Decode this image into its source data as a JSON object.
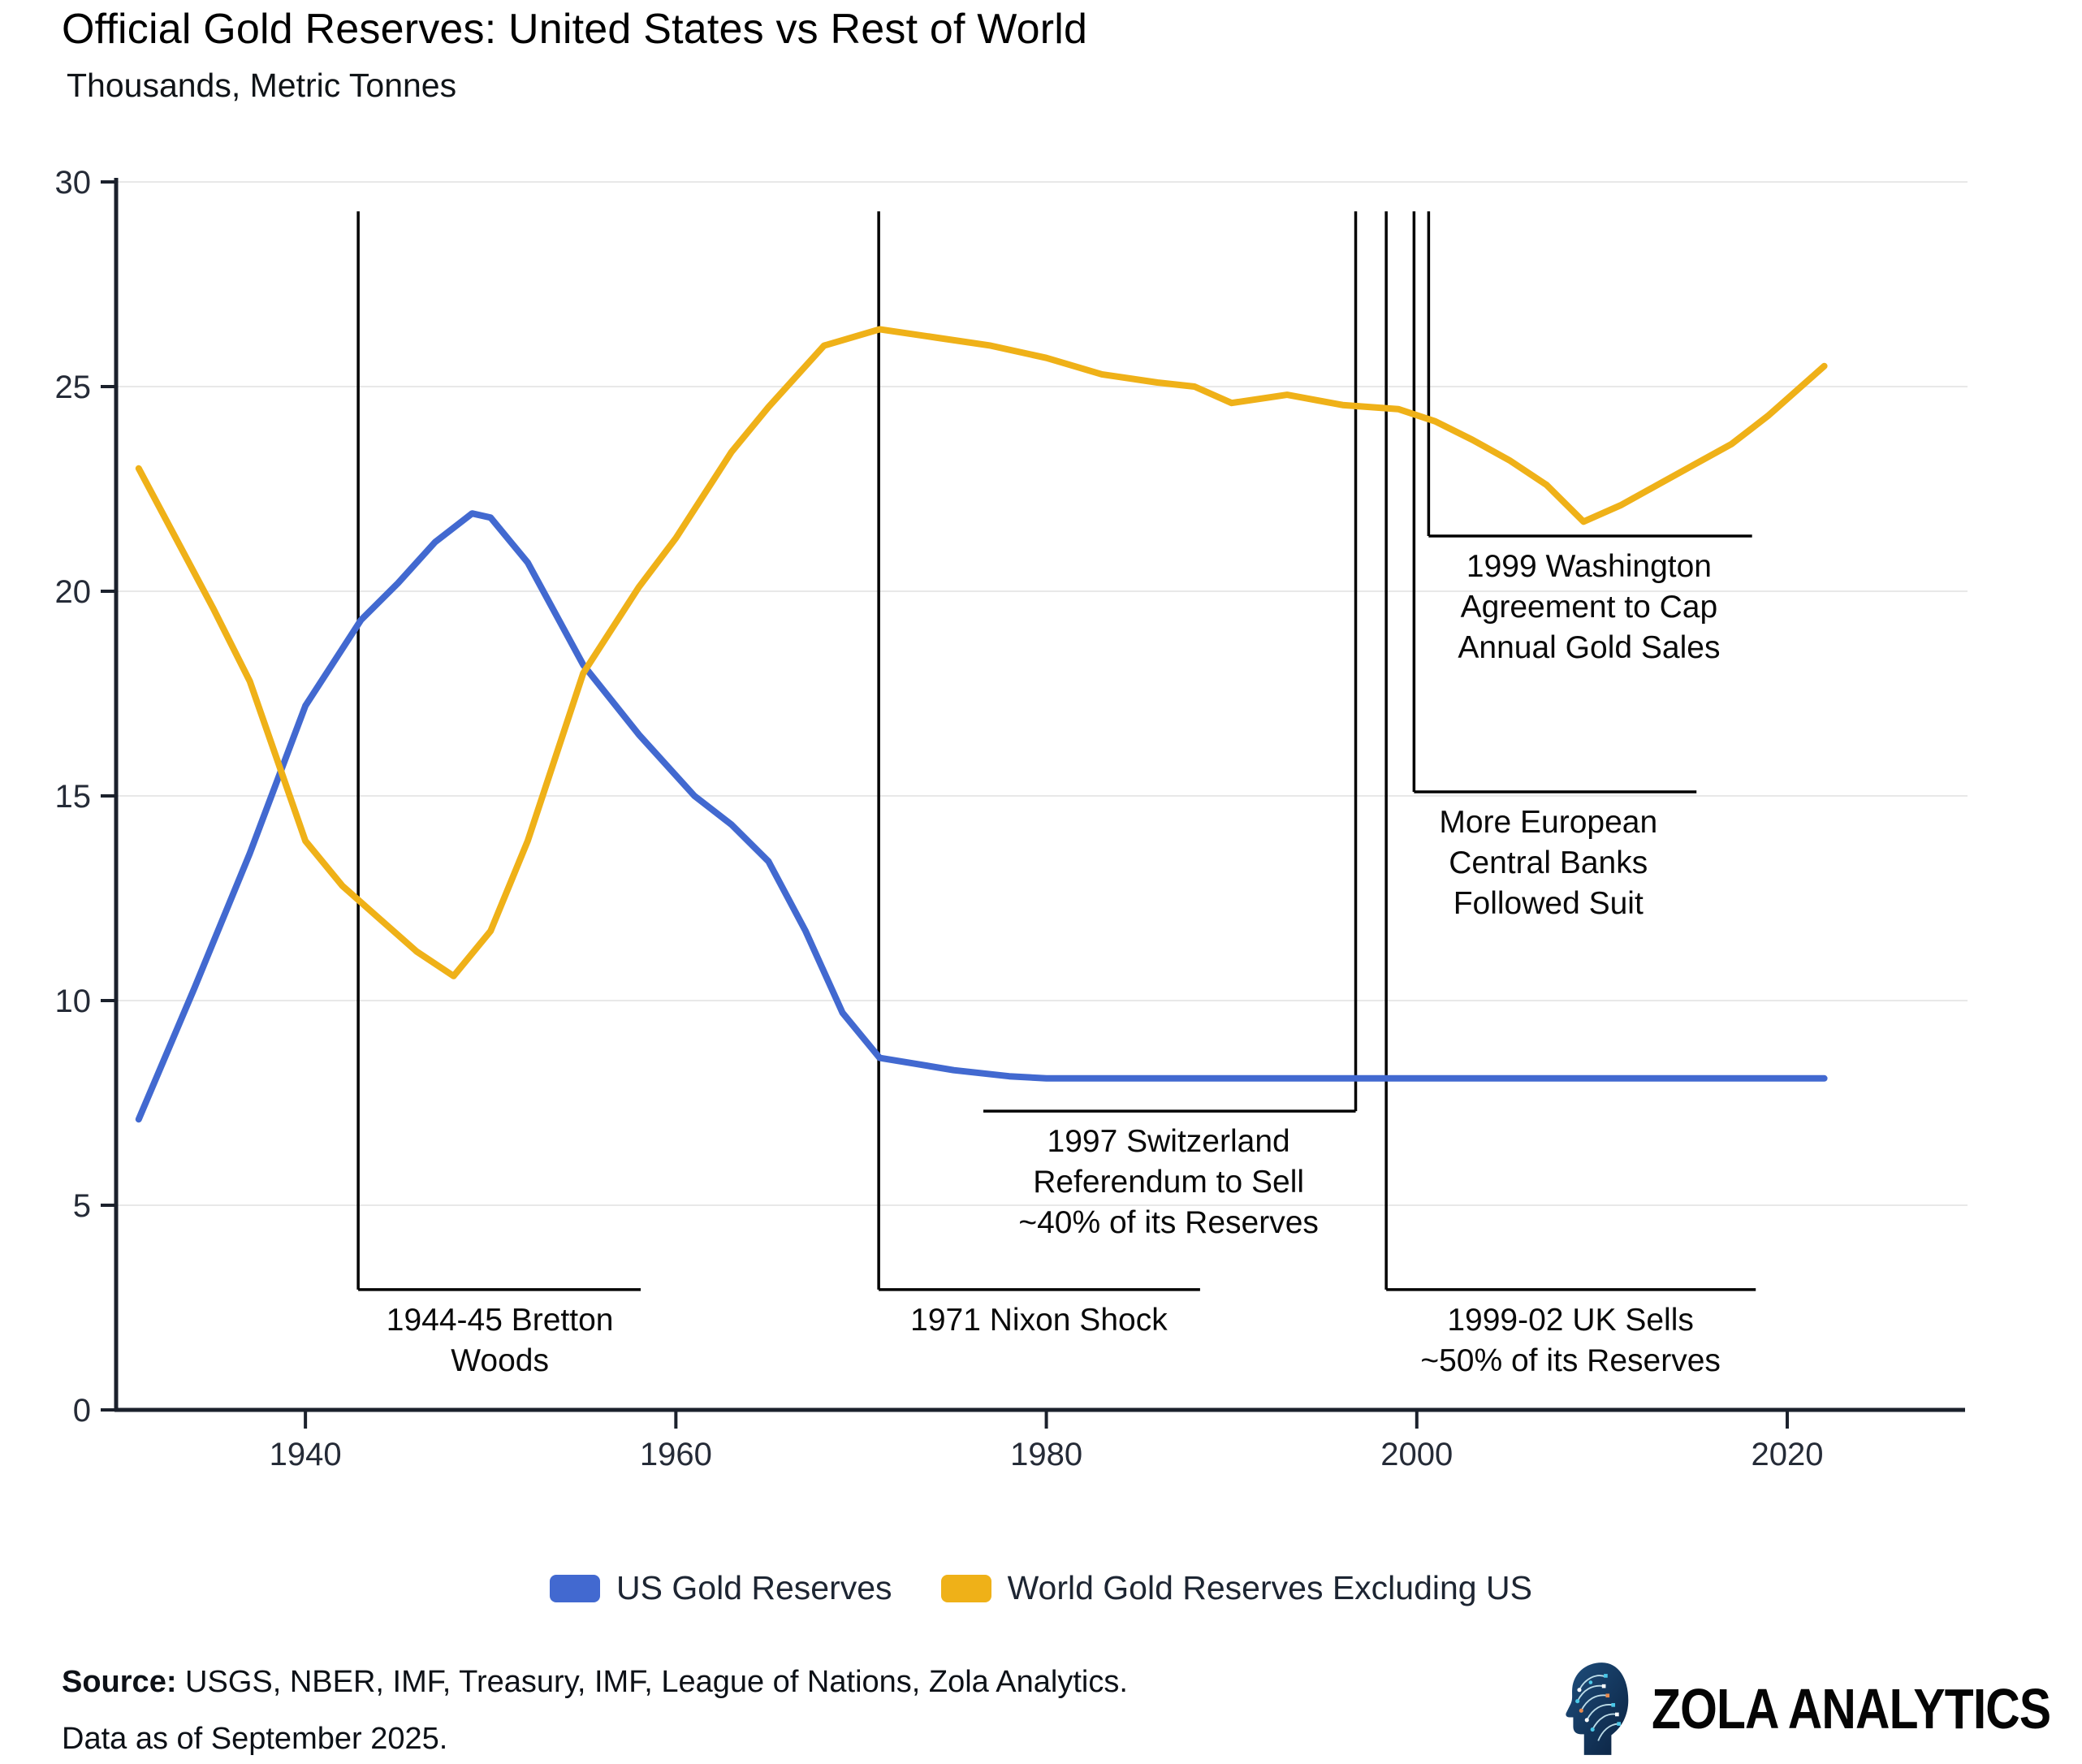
{
  "header": {
    "title": "Official Gold Reserves: United States vs Rest of World",
    "subtitle": "Thousands, Metric Tonnes"
  },
  "legend": [
    {
      "label": "US Gold Reserves",
      "color": "#4269d0"
    },
    {
      "label": "World Gold Reserves Excluding US",
      "color": "#efb118"
    }
  ],
  "source": {
    "label": "Source:",
    "text": "USGS, NBER, IMF, Treasury, IMF, League of Nations, Zola Analytics.",
    "line2": "Data as of September 2025."
  },
  "logo": {
    "name": "ZOLA ANALYTICS",
    "icon": "circuit-head-icon"
  },
  "chart_data": {
    "type": "line",
    "title": "Official Gold Reserves: United States vs Rest of World",
    "ylabel": "Thousands, Metric Tonnes",
    "xlabel": "",
    "xlim": [
      1929.78,
      2029.6
    ],
    "ylim": [
      0,
      30
    ],
    "x_ticks": [
      1940,
      1960,
      1980,
      2000,
      2020
    ],
    "y_ticks": [
      0,
      5,
      10,
      15,
      20,
      25,
      30
    ],
    "grid": true,
    "legend_position": "bottom",
    "colors": {
      "grid": "#e8e8e8",
      "axis": "#1b212c",
      "tick_text": "#252b37",
      "annotation": "#000000"
    },
    "series": [
      {
        "name": "US Gold Reserves",
        "color": "#4269d0",
        "points": [
          [
            1931,
            7.1
          ],
          [
            1934,
            10.3
          ],
          [
            1937,
            13.6
          ],
          [
            1940,
            17.2
          ],
          [
            1943,
            19.3
          ],
          [
            1945,
            20.2
          ],
          [
            1947,
            21.2
          ],
          [
            1949,
            21.9
          ],
          [
            1950,
            21.8
          ],
          [
            1952,
            20.7
          ],
          [
            1955,
            18.2
          ],
          [
            1958,
            16.5
          ],
          [
            1961,
            15.0
          ],
          [
            1963,
            14.3
          ],
          [
            1965,
            13.4
          ],
          [
            1967,
            11.7
          ],
          [
            1969,
            9.7
          ],
          [
            1971,
            8.6
          ],
          [
            1973,
            8.45
          ],
          [
            1975,
            8.3
          ],
          [
            1978,
            8.15
          ],
          [
            1980,
            8.1
          ],
          [
            1985,
            8.1
          ],
          [
            1990,
            8.1
          ],
          [
            1995,
            8.1
          ],
          [
            2000,
            8.1
          ],
          [
            2005,
            8.1
          ],
          [
            2010,
            8.1
          ],
          [
            2015,
            8.1
          ],
          [
            2020,
            8.1
          ],
          [
            2022,
            8.1
          ]
        ]
      },
      {
        "name": "World Gold Reserves Excluding US",
        "color": "#efb118",
        "points": [
          [
            1931,
            23.0
          ],
          [
            1933,
            21.3
          ],
          [
            1935,
            19.6
          ],
          [
            1937,
            17.8
          ],
          [
            1940,
            13.9
          ],
          [
            1942,
            12.8
          ],
          [
            1944,
            12.0
          ],
          [
            1946,
            11.2
          ],
          [
            1948,
            10.6
          ],
          [
            1950,
            11.7
          ],
          [
            1952,
            13.9
          ],
          [
            1955,
            18.0
          ],
          [
            1958,
            20.1
          ],
          [
            1960,
            21.3
          ],
          [
            1963,
            23.4
          ],
          [
            1965,
            24.5
          ],
          [
            1968,
            26.0
          ],
          [
            1971,
            26.4
          ],
          [
            1974,
            26.2
          ],
          [
            1977,
            26.0
          ],
          [
            1980,
            25.7
          ],
          [
            1983,
            25.3
          ],
          [
            1986,
            25.1
          ],
          [
            1988,
            25.0
          ],
          [
            1990,
            24.6
          ],
          [
            1993,
            24.8
          ],
          [
            1996,
            24.55
          ],
          [
            1999,
            24.45
          ],
          [
            2001,
            24.15
          ],
          [
            2003,
            23.7
          ],
          [
            2005,
            23.2
          ],
          [
            2007,
            22.6
          ],
          [
            2009,
            21.7
          ],
          [
            2011,
            22.1
          ],
          [
            2013,
            22.6
          ],
          [
            2015,
            23.1
          ],
          [
            2017,
            23.6
          ],
          [
            2019,
            24.3
          ],
          [
            2020,
            24.7
          ],
          [
            2022,
            25.5
          ]
        ]
      }
    ],
    "annotations": [
      {
        "id": "bretton-woods",
        "year": 1942.85,
        "top": 29.28,
        "bottom": 2.94,
        "h_from": 1942.85,
        "h_to": 1958.1,
        "label_cx": 1950.5,
        "label_lines": [
          "1944-45 Bretton",
          "Woods"
        ]
      },
      {
        "id": "nixon-shock",
        "year": 1970.95,
        "top": 29.28,
        "bottom": 2.94,
        "h_from": 1970.95,
        "h_to": 1988.3,
        "label_cx": 1979.6,
        "label_lines": [
          "1971 Nixon Shock"
        ]
      },
      {
        "id": "swiss-referendum",
        "year": 1996.7,
        "top": 29.28,
        "bottom": 7.3,
        "h_from": 1976.6,
        "h_to": 1996.7,
        "label_cx": 1986.6,
        "label_lines": [
          "1997 Switzerland",
          "Referendum to Sell",
          "~40% of its Reserves"
        ]
      },
      {
        "id": "uk-sells",
        "year": 1998.35,
        "top": 29.28,
        "bottom": 2.94,
        "h_from": 1998.35,
        "h_to": 2018.3,
        "label_cx": 2008.3,
        "label_lines": [
          "1999-02 UK Sells",
          "~50% of its Reserves"
        ]
      },
      {
        "id": "european-banks",
        "year": 1999.85,
        "top": 29.28,
        "bottom": 15.1,
        "h_from": 1999.85,
        "h_to": 2015.1,
        "label_cx": 2007.1,
        "label_lines": [
          "More European",
          "Central Banks",
          "Followed Suit"
        ]
      },
      {
        "id": "washington-agreement",
        "year": 2000.64,
        "top": 29.28,
        "bottom": 21.35,
        "h_from": 2000.64,
        "h_to": 2018.1,
        "label_cx": 2009.3,
        "label_lines": [
          "1999 Washington",
          "Agreement to Cap",
          "Annual Gold Sales"
        ]
      }
    ]
  }
}
